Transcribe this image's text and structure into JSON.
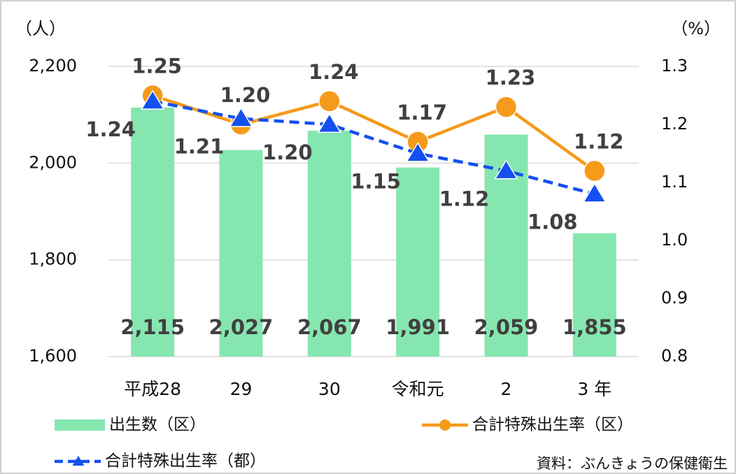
{
  "chart_data": {
    "type": "bar",
    "y_unit": "（人）",
    "y2_unit": "（%）",
    "source": "資料：ぶんきょうの保健衛生",
    "categories": [
      "平成28",
      "29",
      "30",
      "令和元",
      "2",
      "3 年"
    ],
    "series": [
      {
        "name": "出生数（区）",
        "type": "bar",
        "color": "#86e6b0",
        "values": [
          2115,
          2027,
          2067,
          1991,
          2059,
          1855
        ],
        "value_labels": [
          "2,115",
          "2,027",
          "2,067",
          "1,991",
          "2,059",
          "1,855"
        ]
      },
      {
        "name": "合計特殊出生率（区）",
        "type": "line",
        "axis": "y2",
        "marker": "circle",
        "color": "#f59a1a",
        "values": [
          1.25,
          1.2,
          1.24,
          1.17,
          1.23,
          1.12
        ],
        "value_labels": [
          "1.25",
          "1.20",
          "1.24",
          "1.17",
          "1.23",
          "1.12"
        ]
      },
      {
        "name": "合計特殊出生率（都）",
        "type": "line",
        "axis": "y2",
        "marker": "triangle",
        "dashed": true,
        "color": "#1450f0",
        "values": [
          1.24,
          1.21,
          1.2,
          1.15,
          1.12,
          1.08
        ],
        "value_labels": [
          "1.24",
          "1.21",
          "1.20",
          "1.15",
          "1.12",
          "1.08"
        ]
      }
    ],
    "ylim": [
      1600,
      2200
    ],
    "yticks": [
      {
        "value": 1600,
        "label": "1,600"
      },
      {
        "value": 1800,
        "label": "1,800"
      },
      {
        "value": 2000,
        "label": "2,000"
      },
      {
        "value": 2200,
        "label": "2,200"
      }
    ],
    "y2lim": [
      0.8,
      1.3
    ],
    "y2ticks": [
      0.8,
      0.9,
      {
        "value": 1,
        "label": "1.0"
      },
      1.1,
      1.2,
      1.3
    ],
    "grid": true
  }
}
